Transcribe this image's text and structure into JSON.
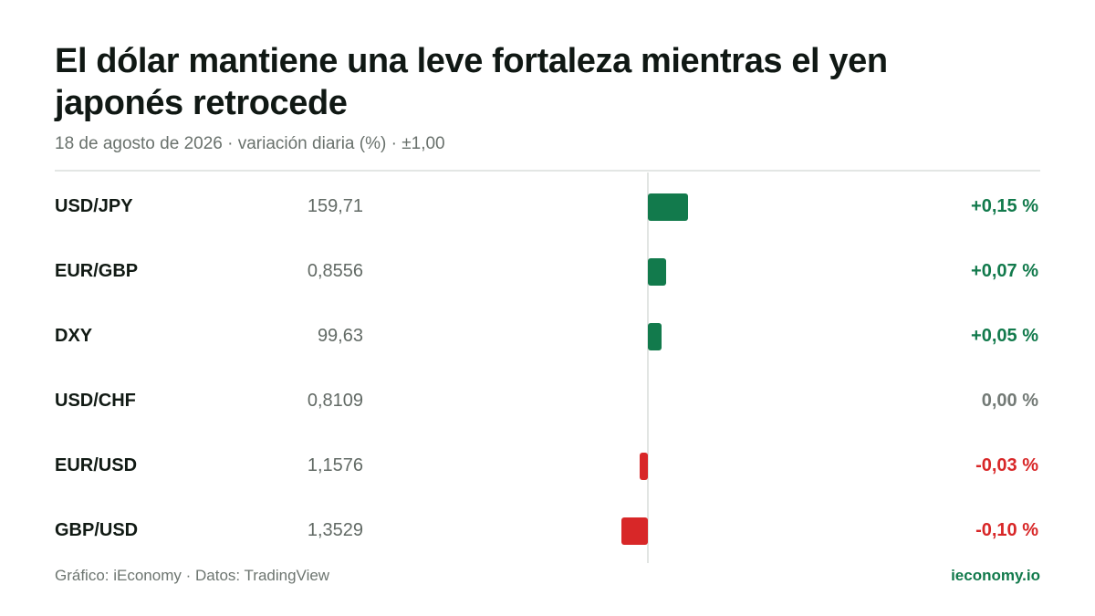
{
  "header": {
    "title": "El dólar mantiene una leve fortaleza mientras el yen japonés retrocede",
    "subtitle": "18 de agosto de 2026 · variación diaria (%) · ±1,00"
  },
  "colors": {
    "positive": "#127a4c",
    "negative": "#d82728",
    "neutral": "#737a76"
  },
  "rows": [
    {
      "pair": "USD/JPY",
      "rate": "159,71",
      "change_label": "+0,15 %"
    },
    {
      "pair": "EUR/GBP",
      "rate": "0,8556",
      "change_label": "+0,07 %"
    },
    {
      "pair": "DXY",
      "rate": "99,63",
      "change_label": "+0,05 %"
    },
    {
      "pair": "USD/CHF",
      "rate": "0,8109",
      "change_label": "0,00 %"
    },
    {
      "pair": "EUR/USD",
      "rate": "1,1576",
      "change_label": "-0,03 %"
    },
    {
      "pair": "GBP/USD",
      "rate": "1,3529",
      "change_label": "-0,10 %"
    }
  ],
  "chart_data": {
    "type": "bar",
    "orientation": "horizontal",
    "categories": [
      "USD/JPY",
      "EUR/GBP",
      "DXY",
      "USD/CHF",
      "EUR/USD",
      "GBP/USD"
    ],
    "values": [
      0.15,
      0.07,
      0.05,
      0.0,
      -0.03,
      -0.1
    ],
    "xlim": [
      -1.0,
      1.0
    ],
    "title": "El dólar mantiene una leve fortaleza mientras el yen japonés retrocede",
    "subtitle": "18 de agosto de 2026 · variación diaria (%) · ±1,00",
    "grid": false,
    "legend": "none"
  },
  "footer": {
    "credit": "Gráfico: iEconomy · Datos: TradingView",
    "brand": "ieconomy.io"
  }
}
